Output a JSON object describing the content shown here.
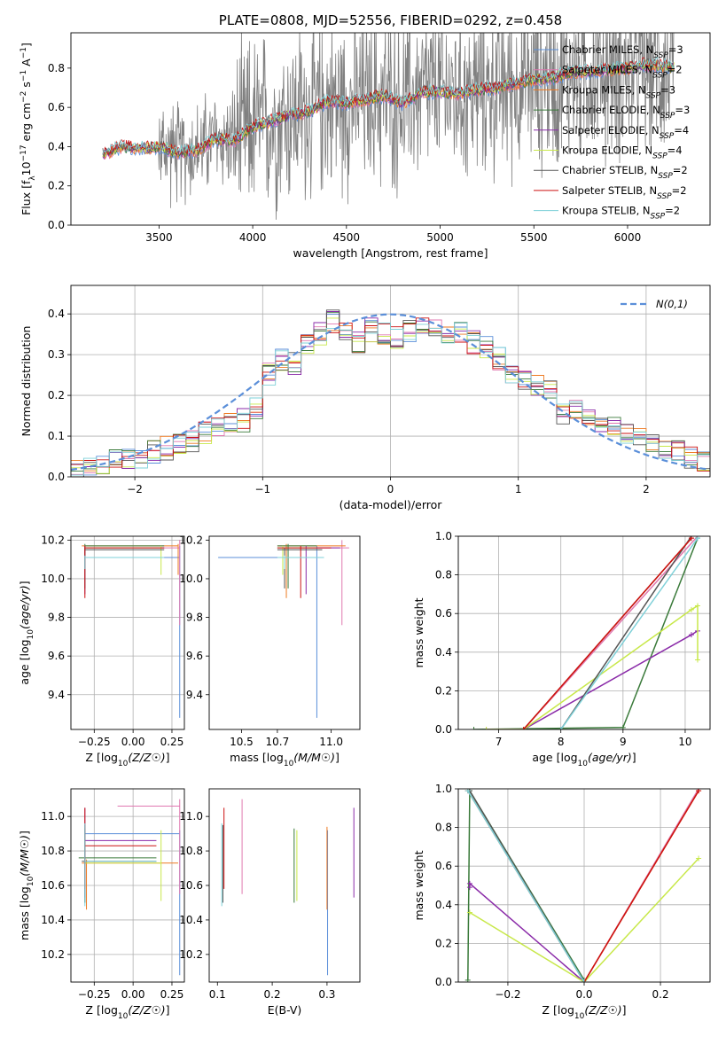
{
  "colors": {
    "chabrier_miles": "#5b8fd9",
    "salpeter_miles": "#e078b0",
    "kroupa_miles": "#ee7a22",
    "chabrier_elodie": "#3a7a3a",
    "salpeter_elodie": "#8a2aa8",
    "kroupa_elodie": "#c8e84a",
    "chabrier_stelib": "#555555",
    "salpeter_stelib": "#cc1111",
    "kroupa_stelib": "#7ed0d8",
    "gauss": "#5b8fd9",
    "spectrum": "#808080"
  },
  "chart_data": [
    {
      "id": "spectrum",
      "type": "line",
      "title": "PLATE=0808, MJD=52556, FIBERID=0292, z=0.458",
      "xlabel": "wavelength [Angstrom, rest frame]",
      "ylabel": "Flux [f_λ10^-17 erg cm^-2 s^-1 A^-1]",
      "xlim": [
        3030,
        6440
      ],
      "ylim": [
        0,
        0.98
      ],
      "xticks": [
        3500,
        4000,
        4500,
        5000,
        5500,
        6000
      ],
      "yticks": [
        0.0,
        0.2,
        0.4,
        0.6,
        0.8
      ],
      "legend_position": "top-right",
      "legend": [
        "Chabrier MILES, N_SSP=3",
        "Salpeter MILES, N_SSP=2",
        "Kroupa MILES, N_SSP=3",
        "Chabrier ELODIE, N_SSP=3",
        "Salpeter ELODIE, N_SSP=4",
        "Kroupa ELODIE, N_SSP=4",
        "Chabrier STELIB, N_SSP=2",
        "Salpeter STELIB, N_SSP=2",
        "Kroupa STELIB, N_SSP=2"
      ],
      "model_continuum": {
        "x": [
          3200,
          3300,
          3400,
          3500,
          3600,
          3700,
          3800,
          3900,
          4000,
          4100,
          4200,
          4300,
          4400,
          4500,
          4600,
          4700,
          4800,
          4900,
          5000,
          5100,
          5200,
          5300,
          5400,
          5500,
          5600,
          5700,
          5800,
          5900,
          6000,
          6100,
          6200,
          6250
        ],
        "y": [
          0.36,
          0.4,
          0.39,
          0.4,
          0.37,
          0.38,
          0.44,
          0.43,
          0.5,
          0.53,
          0.56,
          0.58,
          0.63,
          0.62,
          0.64,
          0.66,
          0.62,
          0.68,
          0.68,
          0.67,
          0.69,
          0.7,
          0.72,
          0.74,
          0.75,
          0.78,
          0.78,
          0.79,
          0.8,
          0.82,
          0.81,
          0.8
        ]
      }
    },
    {
      "id": "residuals",
      "type": "step",
      "xlabel": "(data-model)/error",
      "ylabel": "Normed distribution",
      "xlim": [
        -2.5,
        2.5
      ],
      "ylim": [
        0,
        0.47
      ],
      "xticks": [
        -2,
        -1,
        0,
        1,
        2
      ],
      "yticks": [
        0.0,
        0.1,
        0.2,
        0.3,
        0.4
      ],
      "legend_position": "top-right",
      "legend": [
        "N(0,1)"
      ],
      "bins": [
        -2.5,
        -2.4,
        -2.3,
        -2.2,
        -2.1,
        -2.0,
        -1.9,
        -1.8,
        -1.7,
        -1.6,
        -1.5,
        -1.4,
        -1.3,
        -1.2,
        -1.1,
        -1.0,
        -0.9,
        -0.8,
        -0.7,
        -0.6,
        -0.5,
        -0.4,
        -0.3,
        -0.2,
        -0.1,
        0.0,
        0.1,
        0.2,
        0.3,
        0.4,
        0.5,
        0.6,
        0.7,
        0.8,
        0.9,
        1.0,
        1.1,
        1.2,
        1.3,
        1.4,
        1.5,
        1.6,
        1.7,
        1.8,
        1.9,
        2.0,
        2.1,
        2.2,
        2.3,
        2.4
      ],
      "mean_histogram": [
        0.01,
        0.02,
        0.03,
        0.04,
        0.05,
        0.05,
        0.06,
        0.07,
        0.08,
        0.09,
        0.11,
        0.12,
        0.13,
        0.14,
        0.17,
        0.25,
        0.29,
        0.28,
        0.33,
        0.35,
        0.38,
        0.36,
        0.33,
        0.36,
        0.35,
        0.34,
        0.36,
        0.37,
        0.36,
        0.35,
        0.36,
        0.33,
        0.32,
        0.29,
        0.26,
        0.24,
        0.22,
        0.21,
        0.16,
        0.16,
        0.14,
        0.13,
        0.13,
        0.11,
        0.09,
        0.08,
        0.07,
        0.06,
        0.05,
        0.04
      ],
      "gaussian": {
        "mean": 0,
        "sigma": 1
      }
    },
    {
      "id": "age-vs-Z",
      "type": "errorbar",
      "xlabel": "Z [log10(Z/Z☉)]",
      "ylabel": "age  [log10(age/yr)]",
      "xlim": [
        -0.4,
        0.33
      ],
      "ylim": [
        9.22,
        10.22
      ],
      "xticks": [
        -0.25,
        0.0,
        0.25
      ],
      "xticklabels": [
        "−0.25",
        "0.00",
        "0.25"
      ],
      "yticks": [
        9.4,
        9.6,
        9.8,
        10.0,
        10.2
      ],
      "points": [
        {
          "model": "chabrier_miles",
          "x": 0.3,
          "y": 10.11,
          "xlo": -0.3,
          "xhi": 0.3,
          "ylo": 9.28,
          "yhi": 10.17
        },
        {
          "model": "salpeter_miles",
          "x": 0.3,
          "y": 10.16,
          "xlo": -0.3,
          "xhi": 0.3,
          "ylo": 9.76,
          "yhi": 10.2
        },
        {
          "model": "kroupa_miles",
          "x": 0.29,
          "y": 10.17,
          "xlo": -0.33,
          "xhi": 0.29,
          "ylo": 10.02,
          "yhi": 10.18
        },
        {
          "model": "chabrier_elodie",
          "x": -0.31,
          "y": 10.17,
          "xlo": -0.31,
          "xhi": 0.2,
          "ylo": 10.05,
          "yhi": 10.18
        },
        {
          "model": "salpeter_elodie",
          "x": -0.31,
          "y": 10.16,
          "xlo": -0.31,
          "xhi": 0.2,
          "ylo": 9.92,
          "yhi": 10.17
        },
        {
          "model": "kroupa_elodie",
          "x": 0.18,
          "y": 10.16,
          "xlo": -0.31,
          "xhi": 0.18,
          "ylo": 10.02,
          "yhi": 10.17
        },
        {
          "model": "chabrier_stelib",
          "x": -0.31,
          "y": 10.15,
          "xlo": -0.31,
          "xhi": 0.2,
          "ylo": 9.95,
          "yhi": 10.16
        },
        {
          "model": "salpeter_stelib",
          "x": -0.31,
          "y": 10.16,
          "xlo": -0.31,
          "xhi": 0.2,
          "ylo": 9.9,
          "yhi": 10.17
        },
        {
          "model": "kroupa_stelib",
          "x": -0.31,
          "y": 10.11,
          "xlo": -0.31,
          "xhi": 0.2,
          "ylo": 10.05,
          "yhi": 10.12
        }
      ]
    },
    {
      "id": "age-vs-mass",
      "type": "errorbar",
      "xlabel": "mass [log10(M/M☉)]",
      "ylabel": "",
      "xlim": [
        10.32,
        11.16
      ],
      "ylim": [
        9.22,
        10.22
      ],
      "xticks": [
        10.5,
        10.7,
        11.0
      ],
      "xticklabels": [
        "10.5",
        "10.7",
        "11.0"
      ],
      "yticks": [
        9.4,
        9.6,
        9.8,
        10.0,
        10.2
      ],
      "points": [
        {
          "model": "chabrier_miles",
          "x": 10.92,
          "y": 10.11,
          "xlo": 10.37,
          "xhi": 10.92,
          "ylo": 9.28,
          "yhi": 10.17
        },
        {
          "model": "salpeter_miles",
          "x": 11.06,
          "y": 10.16,
          "xlo": 10.82,
          "xhi": 11.1,
          "ylo": 9.76,
          "yhi": 10.2
        },
        {
          "model": "kroupa_miles",
          "x": 10.75,
          "y": 10.17,
          "xlo": 10.7,
          "xhi": 11.08,
          "ylo": 9.9,
          "yhi": 10.18
        },
        {
          "model": "chabrier_elodie",
          "x": 10.76,
          "y": 10.17,
          "xlo": 10.7,
          "xhi": 10.92,
          "ylo": 9.95,
          "yhi": 10.18
        },
        {
          "model": "salpeter_elodie",
          "x": 10.86,
          "y": 10.16,
          "xlo": 10.7,
          "xhi": 11.05,
          "ylo": 9.92,
          "yhi": 10.17
        },
        {
          "model": "kroupa_elodie",
          "x": 10.73,
          "y": 10.16,
          "xlo": 10.7,
          "xhi": 10.92,
          "ylo": 10.02,
          "yhi": 10.17
        },
        {
          "model": "chabrier_stelib",
          "x": 10.74,
          "y": 10.15,
          "xlo": 10.7,
          "xhi": 10.95,
          "ylo": 9.95,
          "yhi": 10.16
        },
        {
          "model": "salpeter_stelib",
          "x": 10.83,
          "y": 10.16,
          "xlo": 10.7,
          "xhi": 11.0,
          "ylo": 9.9,
          "yhi": 10.17
        },
        {
          "model": "kroupa_stelib",
          "x": 10.74,
          "y": 10.11,
          "xlo": 10.7,
          "xhi": 10.96,
          "ylo": 10.05,
          "yhi": 10.12
        }
      ]
    },
    {
      "id": "weight-vs-age",
      "type": "line",
      "xlabel": "age  [log10(age/yr)]",
      "ylabel": "mass weight",
      "xlim": [
        6.35,
        10.4
      ],
      "ylim": [
        0,
        1
      ],
      "xticks": [
        7,
        8,
        9,
        10
      ],
      "yticks": [
        0.0,
        0.2,
        0.4,
        0.6,
        0.8,
        1.0
      ],
      "series": [
        {
          "model": "chabrier_miles",
          "x": [
            7.4,
            10.1
          ],
          "y": [
            0.0,
            0.99
          ]
        },
        {
          "model": "salpeter_miles",
          "x": [
            7.4,
            10.2
          ],
          "y": [
            0.0,
            1.0
          ]
        },
        {
          "model": "kroupa_miles",
          "x": [
            7.4,
            10.1
          ],
          "y": [
            0.0,
            0.99
          ]
        },
        {
          "model": "chabrier_elodie",
          "x": [
            6.6,
            9.0,
            10.2
          ],
          "y": [
            0.0,
            0.01,
            0.99
          ]
        },
        {
          "model": "salpeter_elodie",
          "x": [
            6.8,
            7.4,
            10.1,
            10.2
          ],
          "y": [
            0.0,
            0.0,
            0.49,
            0.51
          ]
        },
        {
          "model": "kroupa_elodie",
          "x": [
            6.8,
            7.4,
            10.1,
            10.2,
            10.2
          ],
          "y": [
            0.0,
            0.0,
            0.62,
            0.64,
            0.36
          ]
        },
        {
          "model": "chabrier_stelib",
          "x": [
            8.0,
            10.1
          ],
          "y": [
            0.0,
            1.0
          ]
        },
        {
          "model": "salpeter_stelib",
          "x": [
            7.4,
            10.1
          ],
          "y": [
            0.0,
            0.99
          ]
        },
        {
          "model": "kroupa_stelib",
          "x": [
            8.0,
            10.2
          ],
          "y": [
            0.0,
            0.99
          ]
        }
      ]
    },
    {
      "id": "mass-vs-Z",
      "type": "errorbar",
      "xlabel": "Z [log10(Z/Z☉)]",
      "ylabel": "mass [log10(M/M☉)]",
      "xlim": [
        -0.4,
        0.33
      ],
      "ylim": [
        10.04,
        11.16
      ],
      "xticks": [
        -0.25,
        0.0,
        0.25
      ],
      "xticklabels": [
        "−0.25",
        "0.00",
        "0.25"
      ],
      "yticks": [
        10.2,
        10.4,
        10.6,
        10.8,
        11.0
      ],
      "points": [
        {
          "model": "chabrier_miles",
          "x": 0.3,
          "y": 10.9,
          "xlo": -0.31,
          "xhi": 0.3,
          "ylo": 10.08,
          "yhi": 10.92
        },
        {
          "model": "salpeter_miles",
          "x": 0.3,
          "y": 11.06,
          "xlo": -0.1,
          "xhi": 0.3,
          "ylo": 10.55,
          "yhi": 11.1
        },
        {
          "model": "kroupa_miles",
          "x": -0.3,
          "y": 10.73,
          "xlo": -0.33,
          "xhi": 0.29,
          "ylo": 10.46,
          "yhi": 10.75
        },
        {
          "model": "chabrier_elodie",
          "x": -0.31,
          "y": 10.76,
          "xlo": -0.35,
          "xhi": 0.15,
          "ylo": 10.5,
          "yhi": 10.93
        },
        {
          "model": "salpeter_elodie",
          "x": -0.31,
          "y": 10.86,
          "xlo": -0.31,
          "xhi": 0.15,
          "ylo": 10.53,
          "yhi": 11.05
        },
        {
          "model": "kroupa_elodie",
          "x": 0.18,
          "y": 10.73,
          "xlo": -0.31,
          "xhi": 0.18,
          "ylo": 10.51,
          "yhi": 10.92
        },
        {
          "model": "chabrier_stelib",
          "x": -0.31,
          "y": 10.74,
          "xlo": -0.33,
          "xhi": 0.15,
          "ylo": 10.5,
          "yhi": 10.95
        },
        {
          "model": "salpeter_stelib",
          "x": -0.31,
          "y": 10.83,
          "xlo": -0.31,
          "xhi": 0.15,
          "ylo": 10.58,
          "yhi": 11.05
        },
        {
          "model": "kroupa_stelib",
          "x": -0.31,
          "y": 10.74,
          "xlo": -0.31,
          "xhi": 0.15,
          "ylo": 10.48,
          "yhi": 10.96
        }
      ]
    },
    {
      "id": "mass-vs-ebv",
      "type": "errorbar",
      "xlabel": "E(B-V)",
      "ylabel": "",
      "xlim": [
        0.085,
        0.36
      ],
      "ylim": [
        10.04,
        11.16
      ],
      "xticks": [
        0.1,
        0.2,
        0.3
      ],
      "xticklabels": [
        "0.1",
        "0.2",
        "0.3"
      ],
      "yticks": [
        10.2,
        10.4,
        10.6,
        10.8,
        11.0
      ],
      "points": [
        {
          "model": "chabrier_miles",
          "x": 0.301,
          "y": 10.9,
          "ylo": 10.08,
          "yhi": 10.92
        },
        {
          "model": "salpeter_miles",
          "x": 0.145,
          "y": 11.06,
          "ylo": 10.55,
          "yhi": 11.1
        },
        {
          "model": "kroupa_miles",
          "x": 0.3,
          "y": 10.73,
          "ylo": 10.46,
          "yhi": 10.94
        },
        {
          "model": "chabrier_elodie",
          "x": 0.24,
          "y": 10.76,
          "ylo": 10.5,
          "yhi": 10.93
        },
        {
          "model": "salpeter_elodie",
          "x": 0.349,
          "y": 10.86,
          "ylo": 10.53,
          "yhi": 11.05
        },
        {
          "model": "kroupa_elodie",
          "x": 0.245,
          "y": 10.73,
          "ylo": 10.51,
          "yhi": 10.92
        },
        {
          "model": "chabrier_stelib",
          "x": 0.11,
          "y": 10.74,
          "ylo": 10.5,
          "yhi": 10.95
        },
        {
          "model": "salpeter_stelib",
          "x": 0.112,
          "y": 10.83,
          "ylo": 10.58,
          "yhi": 11.05
        },
        {
          "model": "kroupa_stelib",
          "x": 0.108,
          "y": 10.74,
          "ylo": 10.48,
          "yhi": 10.96
        }
      ]
    },
    {
      "id": "weight-vs-Z",
      "type": "line",
      "xlabel": "Z [log10(Z/Z☉)]",
      "ylabel": "mass weight",
      "xlim": [
        -0.33,
        0.33
      ],
      "ylim": [
        0,
        1
      ],
      "xticks": [
        -0.2,
        0.0,
        0.2
      ],
      "xticklabels": [
        "−0.2",
        "0.0",
        "0.2"
      ],
      "yticks": [
        0.0,
        0.2,
        0.4,
        0.6,
        0.8,
        1.0
      ],
      "series": [
        {
          "model": "chabrier_miles",
          "x": [
            -0.305,
            0.0
          ],
          "y": [
            0.99,
            0.0
          ]
        },
        {
          "model": "salpeter_miles",
          "x": [
            0.0,
            0.3
          ],
          "y": [
            0.0,
            1.0
          ]
        },
        {
          "model": "kroupa_miles",
          "x": [
            -0.305,
            0.0,
            0.3
          ],
          "y": [
            0.99,
            0.0,
            0.99
          ]
        },
        {
          "model": "chabrier_elodie",
          "x": [
            -0.305,
            -0.3,
            0.0
          ],
          "y": [
            0.01,
            0.99,
            0.01
          ]
        },
        {
          "model": "salpeter_elodie",
          "x": [
            -0.3,
            -0.3,
            0.0
          ],
          "y": [
            0.49,
            0.51,
            0.0
          ]
        },
        {
          "model": "kroupa_elodie",
          "x": [
            -0.3,
            0.0,
            0.3
          ],
          "y": [
            0.36,
            0.0,
            0.64
          ]
        },
        {
          "model": "chabrier_stelib",
          "x": [
            -0.3,
            0.0
          ],
          "y": [
            0.99,
            0.0
          ]
        },
        {
          "model": "salpeter_stelib",
          "x": [
            0.0,
            0.3
          ],
          "y": [
            0.0,
            0.99
          ]
        },
        {
          "model": "kroupa_stelib",
          "x": [
            -0.305,
            0.0
          ],
          "y": [
            0.99,
            0.0
          ]
        }
      ]
    }
  ]
}
